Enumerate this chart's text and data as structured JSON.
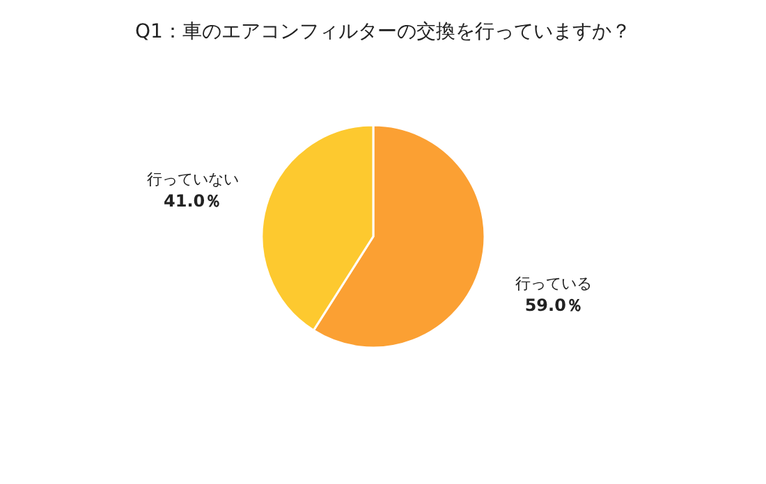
{
  "chart_data": {
    "type": "pie",
    "title": "Q1：車のエアコンフィルターの交換を行っていますか？",
    "categories": [
      "行っている",
      "行っていない"
    ],
    "values": [
      59.0,
      41.0
    ],
    "colors": [
      "#fba033",
      "#fdc92f"
    ],
    "value_labels": [
      "59.0％",
      "41.0％"
    ]
  }
}
